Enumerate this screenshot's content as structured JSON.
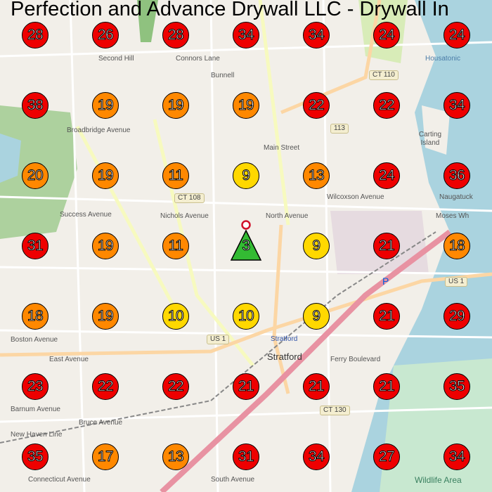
{
  "title": "Perfection and Advance Drywall LLC - Drywall In",
  "colors": {
    "red": "#ee0000",
    "orange": "#ff8800",
    "yellow": "#ffd800",
    "green": "#33bb33"
  },
  "center_marker": {
    "rank": "3",
    "shape": "triangle",
    "color": "#33bb33"
  },
  "grid": [
    [
      "28",
      "26",
      "28",
      "34",
      "34",
      "24",
      "24"
    ],
    [
      "38",
      "19",
      "19",
      "19",
      "22",
      "22",
      "34"
    ],
    [
      "20",
      "19",
      "11",
      "9",
      "13",
      "24",
      "36"
    ],
    [
      "31",
      "19",
      "11",
      "3",
      "9",
      "21",
      "18"
    ],
    [
      "18",
      "19",
      "10",
      "10",
      "9",
      "21",
      "29"
    ],
    [
      "23",
      "22",
      "22",
      "21",
      "21",
      "21",
      "35"
    ],
    [
      "35",
      "17",
      "13",
      "31",
      "34",
      "27",
      "34"
    ]
  ],
  "map_labels": {
    "bunnell": "Bunnell",
    "connors": "Connors Lane",
    "second_hill": "Second Hill",
    "ct110": "CT 110",
    "ct113": "113",
    "ct108": "CT 108",
    "ct130": "CT 130",
    "us1a": "US 1",
    "us1b": "US 1",
    "housatonic": "Housatonic",
    "carting": "Carting Island",
    "broadbridge": "Broadbridge Avenue",
    "wilcoxson": "Wilcoxson Avenue",
    "naugatuck": "Naugatuck",
    "moses": "Moses Wh",
    "north_ave": "North Avenue",
    "nichols": "Nichols Avenue",
    "success": "Success Avenue",
    "main_street": "Main Street",
    "stratford_station": "Stratford",
    "stratford": "Stratford",
    "boston": "Boston Avenue",
    "east_ave": "East Avenue",
    "ferry": "Ferry Boulevard",
    "barnum": "Barnum Avenue",
    "bruce": "Bruce Avenue",
    "new_haven": "New Haven Line",
    "connecticut": "Connecticut Avenue",
    "south_ave": "South Avenue",
    "wildlife": "Wildlife Area",
    "parking": "P"
  }
}
